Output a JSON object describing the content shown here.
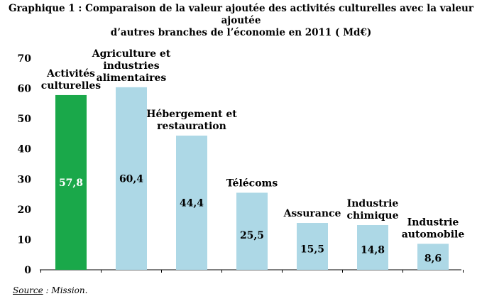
{
  "chart_data": {
    "type": "bar",
    "title_lines": [
      "Graphique 1 : Comparaison de la valeur ajoutée des activités culturelles avec la valeur ajoutée",
      "d’autres branches de l’économie en 2011 ( Md€)"
    ],
    "categories": [
      [
        "Activités",
        "culturelles"
      ],
      [
        "Agriculture et",
        "industries",
        "alimentaires"
      ],
      [
        "Hébergement et",
        "restauration"
      ],
      [
        "Télécoms"
      ],
      [
        "Assurance"
      ],
      [
        "Industrie",
        "chimique"
      ],
      [
        "Industrie",
        "automobile"
      ]
    ],
    "values": [
      57.8,
      60.4,
      44.4,
      25.5,
      15.5,
      14.8,
      8.6
    ],
    "value_labels": [
      "57,8",
      "60,4",
      "44,4",
      "25,5",
      "15,5",
      "14,8",
      "8,6"
    ],
    "bar_colors": [
      "#1aa84a",
      "#add8e6",
      "#add8e6",
      "#add8e6",
      "#add8e6",
      "#add8e6",
      "#add8e6"
    ],
    "label_color_on_highlight": "#ffffff",
    "label_color_default": "#000000",
    "yticks": [
      "0",
      "10",
      "20",
      "30",
      "40",
      "50",
      "60",
      "70"
    ],
    "ylim": [
      0,
      70
    ],
    "grid": false,
    "xlabel": "",
    "ylabel": ""
  },
  "source": {
    "label": "Source",
    "text": " : Mission."
  }
}
